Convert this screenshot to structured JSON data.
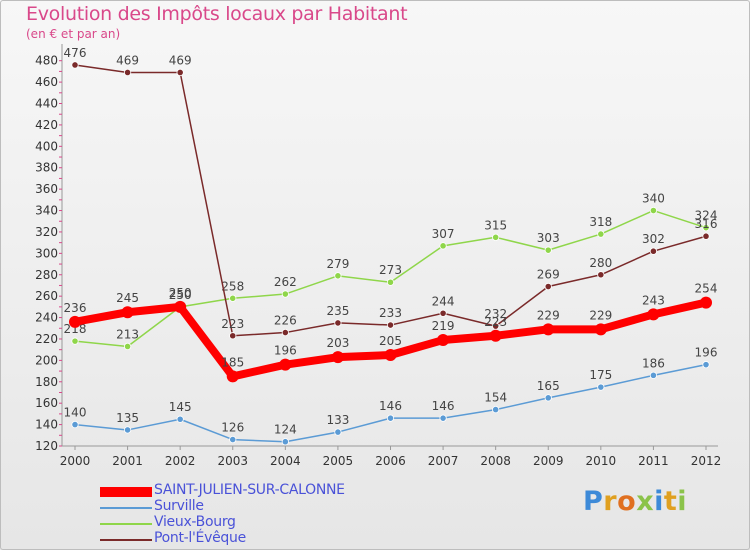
{
  "chart_data": {
    "type": "line",
    "title": "Evolution des Impôts locaux par Habitant",
    "subtitle": "(en € et par an)",
    "x": [
      "2000",
      "2001",
      "2002",
      "2003",
      "2004",
      "2005",
      "2006",
      "2007",
      "2008",
      "2009",
      "2010",
      "2011",
      "2012"
    ],
    "ylim": [
      120,
      490
    ],
    "yticks": [
      120,
      140,
      160,
      180,
      200,
      220,
      240,
      260,
      280,
      300,
      320,
      340,
      360,
      380,
      400,
      420,
      440,
      460,
      480
    ],
    "grid": false,
    "legend_position": "bottom-left",
    "series": [
      {
        "name": "SAINT-JULIEN-SUR-CALONNE",
        "color": "#ff0000",
        "values": [
          236,
          245,
          250,
          185,
          196,
          203,
          205,
          219,
          223,
          229,
          229,
          243,
          254
        ]
      },
      {
        "name": "Surville",
        "color": "#5b9bd5",
        "values": [
          140,
          135,
          145,
          126,
          124,
          133,
          146,
          146,
          154,
          165,
          175,
          186,
          196
        ]
      },
      {
        "name": "Vieux-Bourg",
        "color": "#8fd64a",
        "values": [
          218,
          213,
          250,
          258,
          262,
          279,
          273,
          307,
          315,
          303,
          318,
          340,
          324
        ]
      },
      {
        "name": "Pont-l'Évêque",
        "color": "#7a2a2a",
        "values": [
          476,
          469,
          469,
          223,
          226,
          235,
          233,
          244,
          232,
          269,
          280,
          302,
          316
        ]
      }
    ]
  },
  "logo": {
    "letters": [
      {
        "ch": "P",
        "color": "#3d8ad8"
      },
      {
        "ch": "r",
        "color": "#e0a020"
      },
      {
        "ch": "o",
        "color": "#e07020"
      },
      {
        "ch": "x",
        "color": "#8bc34a"
      },
      {
        "ch": "i",
        "color": "#3d8ad8"
      },
      {
        "ch": "t",
        "color": "#e0a020"
      },
      {
        "ch": "i",
        "color": "#8bc34a"
      }
    ]
  }
}
